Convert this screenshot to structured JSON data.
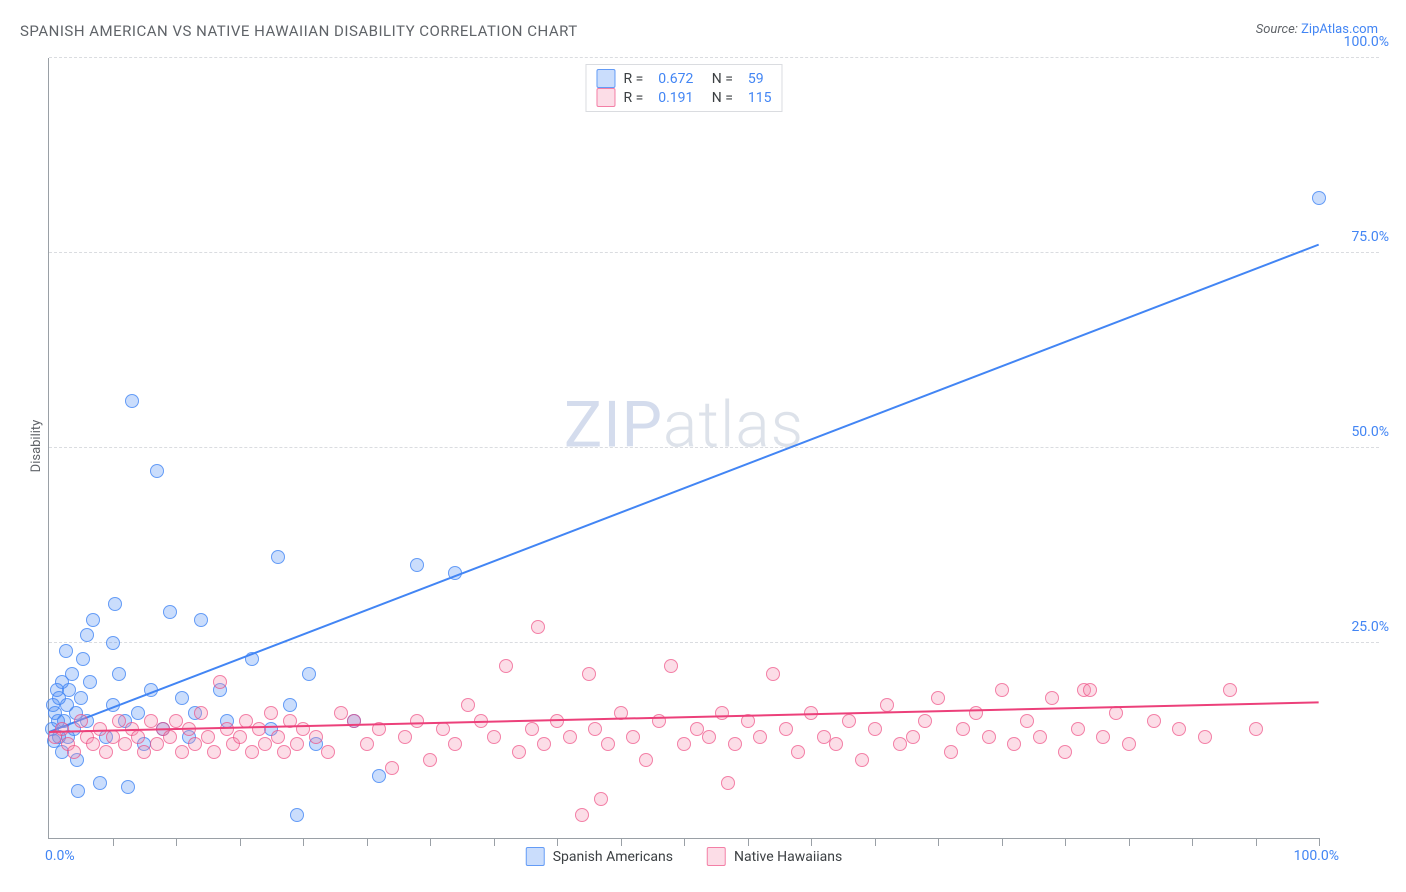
{
  "title": "SPANISH AMERICAN VS NATIVE HAWAIIAN DISABILITY CORRELATION CHART",
  "source_prefix": "Source: ",
  "source_link": "ZipAtlas.com",
  "ylabel": "Disability",
  "watermark": {
    "zip": "ZIP",
    "atlas": "atlas"
  },
  "chart": {
    "type": "scatter",
    "background_color": "#ffffff",
    "axis_color": "#9aa0a6",
    "grid_color": "#dadce0",
    "grid_dash": true,
    "xlim": [
      0,
      100
    ],
    "ylim": [
      0,
      100
    ],
    "xtick_label_low": "0.0%",
    "xtick_label_high": "100.0%",
    "xtick_positions": [
      5,
      10,
      15,
      20,
      25,
      30,
      35,
      40,
      45,
      50,
      55,
      60,
      65,
      70,
      75,
      80,
      85,
      90,
      95,
      100
    ],
    "yticks": [
      {
        "v": 25,
        "label": "25.0%"
      },
      {
        "v": 50,
        "label": "50.0%"
      },
      {
        "v": 75,
        "label": "75.0%"
      },
      {
        "v": 100,
        "label": "100.0%"
      }
    ],
    "marker_radius": 6,
    "marker_fill_opacity": 0.28,
    "marker_stroke_width": 1.4,
    "series": [
      {
        "name": "Spanish Americans",
        "color": "#4285f4",
        "fill": "rgba(66,133,244,0.28)",
        "stroke": "rgba(66,133,244,0.75)",
        "R": "0.672",
        "N": "59",
        "trend": {
          "x1": 0,
          "y1": 13.5,
          "x2": 100,
          "y2": 76.0,
          "width": 2
        },
        "points": [
          [
            0.2,
            14
          ],
          [
            0.3,
            17
          ],
          [
            0.4,
            12.5
          ],
          [
            0.5,
            16
          ],
          [
            0.6,
            19
          ],
          [
            0.7,
            15
          ],
          [
            0.8,
            13
          ],
          [
            0.8,
            18
          ],
          [
            1.0,
            11
          ],
          [
            1.0,
            20
          ],
          [
            1.2,
            15
          ],
          [
            1.3,
            24
          ],
          [
            1.4,
            17
          ],
          [
            1.5,
            13
          ],
          [
            1.6,
            19
          ],
          [
            1.8,
            21
          ],
          [
            2.0,
            14
          ],
          [
            2.1,
            16
          ],
          [
            2.2,
            10
          ],
          [
            2.3,
            6
          ],
          [
            2.5,
            18
          ],
          [
            2.7,
            23
          ],
          [
            3.0,
            26
          ],
          [
            3.0,
            15
          ],
          [
            3.2,
            20
          ],
          [
            3.5,
            28
          ],
          [
            4.0,
            7
          ],
          [
            4.5,
            13
          ],
          [
            5.0,
            17
          ],
          [
            5.0,
            25
          ],
          [
            5.2,
            30
          ],
          [
            5.5,
            21
          ],
          [
            6.0,
            15
          ],
          [
            6.2,
            6.5
          ],
          [
            6.5,
            56
          ],
          [
            7.0,
            16
          ],
          [
            7.5,
            12
          ],
          [
            8.0,
            19
          ],
          [
            8.5,
            47
          ],
          [
            9.0,
            14
          ],
          [
            9.5,
            29
          ],
          [
            10.5,
            18
          ],
          [
            11.0,
            13
          ],
          [
            11.5,
            16
          ],
          [
            12.0,
            28
          ],
          [
            13.5,
            19
          ],
          [
            14.0,
            15
          ],
          [
            16.0,
            23
          ],
          [
            17.5,
            14
          ],
          [
            18.0,
            36
          ],
          [
            19.0,
            17
          ],
          [
            19.5,
            3
          ],
          [
            20.5,
            21
          ],
          [
            21.0,
            12
          ],
          [
            24.0,
            15
          ],
          [
            26.0,
            8
          ],
          [
            29.0,
            35
          ],
          [
            32.0,
            34
          ],
          [
            100,
            82
          ]
        ]
      },
      {
        "name": "Native Hawaiians",
        "color": "#ec407a",
        "fill": "rgba(244,143,177,0.30)",
        "stroke": "rgba(236,64,122,0.60)",
        "R": "0.191",
        "N": "115",
        "trend": {
          "x1": 0,
          "y1": 13.5,
          "x2": 100,
          "y2": 17.3,
          "width": 2
        },
        "points": [
          [
            0.5,
            13
          ],
          [
            1,
            14
          ],
          [
            1.5,
            12
          ],
          [
            2,
            11
          ],
          [
            2.5,
            15
          ],
          [
            3,
            13
          ],
          [
            3.5,
            12
          ],
          [
            4,
            14
          ],
          [
            4.5,
            11
          ],
          [
            5,
            13
          ],
          [
            5.5,
            15
          ],
          [
            6,
            12
          ],
          [
            6.5,
            14
          ],
          [
            7,
            13
          ],
          [
            7.5,
            11
          ],
          [
            8,
            15
          ],
          [
            8.5,
            12
          ],
          [
            9,
            14
          ],
          [
            9.5,
            13
          ],
          [
            10,
            15
          ],
          [
            10.5,
            11
          ],
          [
            11,
            14
          ],
          [
            11.5,
            12
          ],
          [
            12,
            16
          ],
          [
            12.5,
            13
          ],
          [
            13,
            11
          ],
          [
            13.5,
            20
          ],
          [
            14,
            14
          ],
          [
            14.5,
            12
          ],
          [
            15,
            13
          ],
          [
            15.5,
            15
          ],
          [
            16,
            11
          ],
          [
            16.5,
            14
          ],
          [
            17,
            12
          ],
          [
            17.5,
            16
          ],
          [
            18,
            13
          ],
          [
            18.5,
            11
          ],
          [
            19,
            15
          ],
          [
            19.5,
            12
          ],
          [
            20,
            14
          ],
          [
            21,
            13
          ],
          [
            22,
            11
          ],
          [
            23,
            16
          ],
          [
            24,
            15
          ],
          [
            25,
            12
          ],
          [
            26,
            14
          ],
          [
            27,
            9
          ],
          [
            28,
            13
          ],
          [
            29,
            15
          ],
          [
            30,
            10
          ],
          [
            31,
            14
          ],
          [
            32,
            12
          ],
          [
            33,
            17
          ],
          [
            34,
            15
          ],
          [
            35,
            13
          ],
          [
            36,
            22
          ],
          [
            37,
            11
          ],
          [
            38,
            14
          ],
          [
            38.5,
            27
          ],
          [
            39,
            12
          ],
          [
            40,
            15
          ],
          [
            41,
            13
          ],
          [
            42,
            3
          ],
          [
            42.5,
            21
          ],
          [
            43,
            14
          ],
          [
            43.5,
            5
          ],
          [
            44,
            12
          ],
          [
            45,
            16
          ],
          [
            46,
            13
          ],
          [
            47,
            10
          ],
          [
            48,
            15
          ],
          [
            49,
            22
          ],
          [
            50,
            12
          ],
          [
            51,
            14
          ],
          [
            52,
            13
          ],
          [
            53,
            16
          ],
          [
            53.5,
            7
          ],
          [
            54,
            12
          ],
          [
            55,
            15
          ],
          [
            56,
            13
          ],
          [
            57,
            21
          ],
          [
            58,
            14
          ],
          [
            59,
            11
          ],
          [
            60,
            16
          ],
          [
            61,
            13
          ],
          [
            62,
            12
          ],
          [
            63,
            15
          ],
          [
            64,
            10
          ],
          [
            65,
            14
          ],
          [
            66,
            17
          ],
          [
            67,
            12
          ],
          [
            68,
            13
          ],
          [
            69,
            15
          ],
          [
            70,
            18
          ],
          [
            71,
            11
          ],
          [
            72,
            14
          ],
          [
            73,
            16
          ],
          [
            74,
            13
          ],
          [
            75,
            19
          ],
          [
            76,
            12
          ],
          [
            77,
            15
          ],
          [
            78,
            13
          ],
          [
            79,
            18
          ],
          [
            80,
            11
          ],
          [
            81,
            14
          ],
          [
            81.5,
            19
          ],
          [
            82,
            19
          ],
          [
            83,
            13
          ],
          [
            84,
            16
          ],
          [
            85,
            12
          ],
          [
            87,
            15
          ],
          [
            89,
            14
          ],
          [
            91,
            13
          ],
          [
            93,
            19
          ],
          [
            95,
            14
          ]
        ]
      }
    ],
    "legend_top": {
      "R_label": "R =",
      "N_label": "N =",
      "value_color": "#4285f4",
      "text_color": "#3c4043"
    },
    "legend_bottom_labels": [
      "Spanish Americans",
      "Native Hawaiians"
    ]
  }
}
